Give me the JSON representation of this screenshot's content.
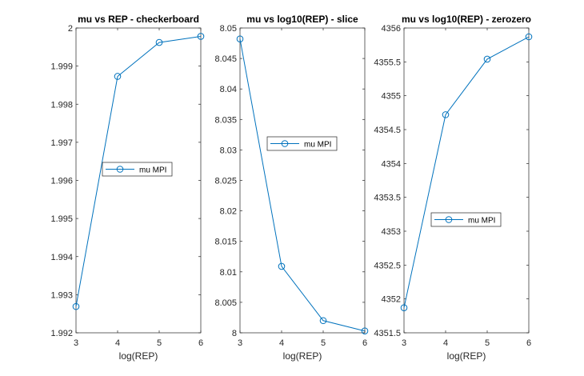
{
  "figure": {
    "background": "#ffffff"
  },
  "chart_data": [
    {
      "type": "line",
      "title": "mu vs REP - checkerboard",
      "xlabel": "log(REP)",
      "ylabel": "",
      "xlim": [
        3,
        6
      ],
      "ylim": [
        1.992,
        2.0
      ],
      "xticks": [
        3,
        4,
        5,
        6
      ],
      "xtick_labels": [
        "3",
        "4",
        "5",
        "6"
      ],
      "yticks": [
        1.992,
        1.993,
        1.994,
        1.995,
        1.996,
        1.997,
        1.998,
        1.999,
        2.0
      ],
      "ytick_labels": [
        "1.992",
        "1.993",
        "1.994",
        "1.995",
        "1.996",
        "1.997",
        "1.998",
        "1.999",
        "2"
      ],
      "grid": false,
      "legend_position": "center",
      "series": [
        {
          "name": "mu MPI",
          "color": "#0072bd",
          "marker": "circle",
          "x": [
            3,
            4,
            5,
            6
          ],
          "y": [
            1.99269,
            1.99873,
            1.99962,
            1.99978
          ]
        }
      ]
    },
    {
      "type": "line",
      "title": "mu vs log10(REP) - slice",
      "xlabel": "log(REP)",
      "ylabel": "",
      "xlim": [
        3,
        6
      ],
      "ylim": [
        8.0,
        8.05
      ],
      "xticks": [
        3,
        4,
        5,
        6
      ],
      "xtick_labels": [
        "3",
        "4",
        "5",
        "6"
      ],
      "yticks": [
        8.0,
        8.005,
        8.01,
        8.015,
        8.02,
        8.025,
        8.03,
        8.035,
        8.04,
        8.045,
        8.05
      ],
      "ytick_labels": [
        "8",
        "8.005",
        "8.01",
        "8.015",
        "8.02",
        "8.025",
        "8.03",
        "8.035",
        "8.04",
        "8.045",
        "8.05"
      ],
      "grid": false,
      "legend_position": "upper-center",
      "series": [
        {
          "name": "mu MPI",
          "color": "#0072bd",
          "marker": "circle",
          "x": [
            3,
            4,
            5,
            6
          ],
          "y": [
            8.0482,
            8.0109,
            8.002,
            8.0003
          ]
        }
      ]
    },
    {
      "type": "line",
      "title": "mu vs log10(REP) - zerozero",
      "xlabel": "log(REP)",
      "ylabel": "",
      "xlim": [
        3,
        6
      ],
      "ylim": [
        4351.5,
        4356
      ],
      "xticks": [
        3,
        4,
        5,
        6
      ],
      "xtick_labels": [
        "3",
        "4",
        "5",
        "6"
      ],
      "yticks": [
        4351.5,
        4352,
        4352.5,
        4353,
        4353.5,
        4354,
        4354.5,
        4355,
        4355.5,
        4356
      ],
      "ytick_labels": [
        "4351.5",
        "4352",
        "4352.5",
        "4353",
        "4353.5",
        "4354",
        "4354.5",
        "4355",
        "4355.5",
        "4356"
      ],
      "grid": false,
      "legend_position": "center",
      "series": [
        {
          "name": "mu MPI",
          "color": "#0072bd",
          "marker": "circle",
          "x": [
            3,
            4,
            5,
            6
          ],
          "y": [
            4351.87,
            4354.72,
            4355.54,
            4355.87
          ]
        }
      ]
    }
  ]
}
